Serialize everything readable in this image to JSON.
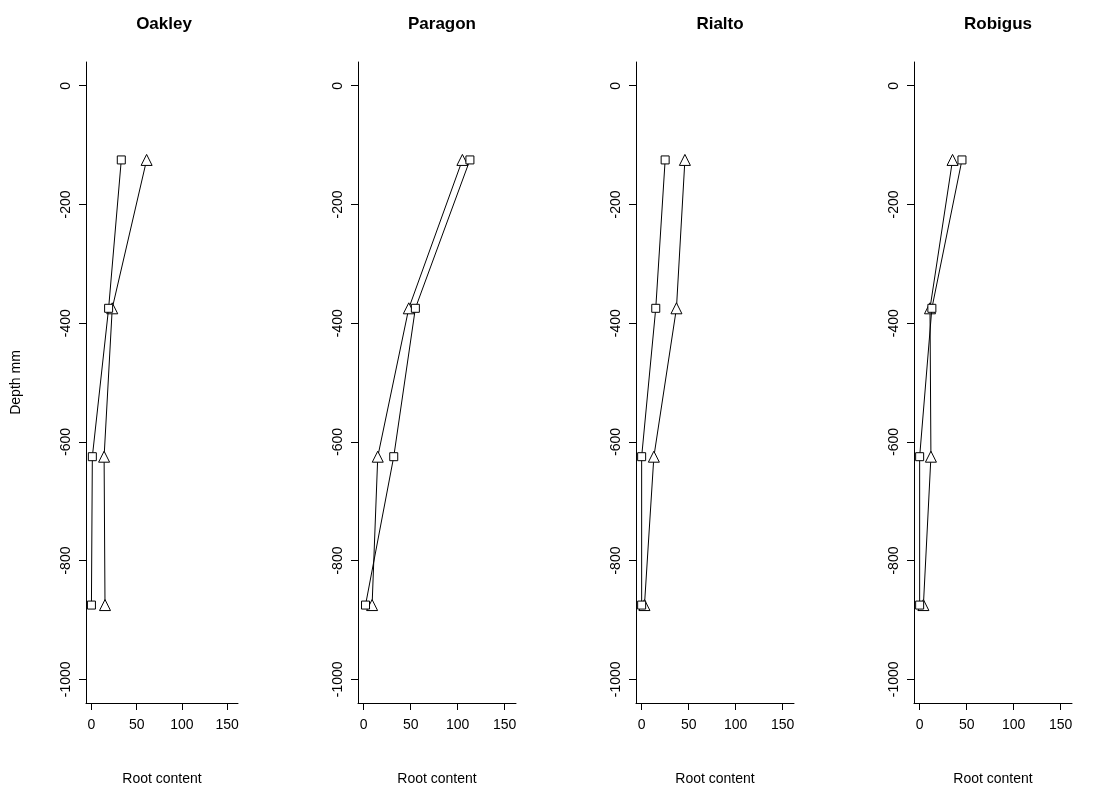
{
  "chart_data": [
    {
      "type": "line",
      "title": "Oakley",
      "xlabel": "Root content",
      "ylabel": "Depth mm",
      "xlim": [
        -6,
        162
      ],
      "ylim": [
        -1040,
        40
      ],
      "xticks": [
        0,
        50,
        100,
        150
      ],
      "yticks": [
        0,
        -200,
        -400,
        -600,
        -800,
        -1000
      ],
      "series": [
        {
          "color": "#000000",
          "marker": "square",
          "x": [
            33,
            19,
            1,
            0
          ],
          "values": [
            -125,
            -375,
            -625,
            -875
          ]
        },
        {
          "color": "#000000",
          "marker": "triangle",
          "x": [
            61,
            23,
            14,
            15
          ],
          "values": [
            -125,
            -375,
            -625,
            -875
          ]
        }
      ]
    },
    {
      "type": "line",
      "title": "Paragon",
      "xlabel": "Root content",
      "xlim": [
        -6,
        162
      ],
      "ylim": [
        -1040,
        40
      ],
      "xticks": [
        0,
        50,
        100,
        150
      ],
      "yticks": [
        0,
        -200,
        -400,
        -600,
        -800,
        -1000
      ],
      "series": [
        {
          "color": "#000000",
          "marker": "square",
          "x": [
            113,
            55,
            32,
            2
          ],
          "values": [
            -125,
            -375,
            -625,
            -875
          ]
        },
        {
          "color": "#000000",
          "marker": "triangle",
          "x": [
            105,
            48,
            15,
            9
          ],
          "values": [
            -125,
            -375,
            -625,
            -875
          ]
        }
      ]
    },
    {
      "type": "line",
      "title": "Rialto",
      "xlabel": "Root content",
      "xlim": [
        -6,
        162
      ],
      "ylim": [
        -1040,
        40
      ],
      "xticks": [
        0,
        50,
        100,
        150
      ],
      "yticks": [
        0,
        -200,
        -400,
        -600,
        -800,
        -1000
      ],
      "series": [
        {
          "color": "#000000",
          "marker": "square",
          "x": [
            25,
            15,
            0,
            0
          ],
          "values": [
            -125,
            -375,
            -625,
            -875
          ]
        },
        {
          "color": "#000000",
          "marker": "triangle",
          "x": [
            46,
            37,
            13,
            3
          ],
          "values": [
            -125,
            -375,
            -625,
            -875
          ]
        }
      ]
    },
    {
      "type": "line",
      "title": "Robigus",
      "xlabel": "Root content",
      "xlim": [
        -6,
        162
      ],
      "ylim": [
        -1040,
        40
      ],
      "xticks": [
        0,
        50,
        100,
        150
      ],
      "yticks": [
        0,
        -200,
        -400,
        -600,
        -800,
        -1000
      ],
      "series": [
        {
          "color": "#000000",
          "marker": "square",
          "x": [
            45,
            13,
            0,
            0
          ],
          "values": [
            -125,
            -375,
            -625,
            -875
          ]
        },
        {
          "color": "#000000",
          "marker": "triangle",
          "x": [
            35,
            11,
            12,
            4
          ],
          "values": [
            -125,
            -375,
            -625,
            -875
          ]
        }
      ]
    }
  ]
}
